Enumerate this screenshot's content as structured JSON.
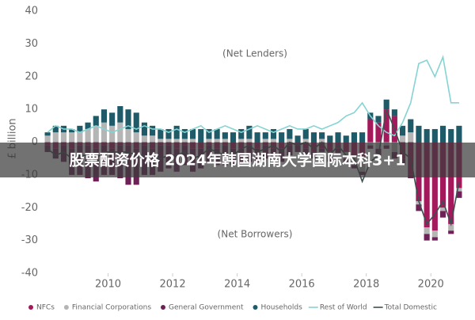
{
  "chart_data": {
    "type": "stacked_bar_line",
    "ylabel": "£ billion",
    "annotations": [
      "(Net Lenders)",
      "(Net Borrowers)"
    ],
    "overlay_text": "股票配资价格 2024年韩国湖南大学国际本科3+1",
    "x": [
      2008.125,
      2008.375,
      2008.625,
      2008.875,
      2009.125,
      2009.375,
      2009.625,
      2009.875,
      2010.125,
      2010.375,
      2010.625,
      2010.875,
      2011.125,
      2011.375,
      2011.625,
      2011.875,
      2012.125,
      2012.375,
      2012.625,
      2012.875,
      2013.125,
      2013.375,
      2013.625,
      2013.875,
      2014.125,
      2014.375,
      2014.625,
      2014.875,
      2015.125,
      2015.375,
      2015.625,
      2015.875,
      2016.125,
      2016.375,
      2016.625,
      2016.875,
      2017.125,
      2017.375,
      2017.625,
      2017.875,
      2018.125,
      2018.375,
      2018.625,
      2018.875,
      2019.125,
      2019.375,
      2019.625,
      2019.875,
      2020.125,
      2020.375,
      2020.625,
      2020.875
    ],
    "xlim": [
      2008,
      2021
    ],
    "xticks": [
      2010,
      2012,
      2014,
      2016,
      2018,
      2020
    ],
    "ylim": [
      -40,
      40
    ],
    "yticks": [
      -40,
      -30,
      -20,
      -10,
      0,
      10,
      20,
      30,
      40
    ],
    "series": [
      {
        "name": "NFCs",
        "kind": "bar",
        "color": "#a3195b",
        "values": [
          -1,
          -2,
          -1,
          -2,
          -1,
          -1,
          -2,
          -1,
          -2,
          -1,
          -1,
          -2,
          -1,
          -2,
          -1,
          -1,
          -2,
          -1,
          -2,
          -2,
          -1,
          -2,
          -1,
          -2,
          -2,
          -1,
          -2,
          -1,
          -2,
          -2,
          -1,
          -1,
          -2,
          -3,
          -2,
          -3,
          -2,
          -3,
          -4,
          -5,
          7,
          6,
          10,
          8,
          -5,
          -10,
          -18,
          -26,
          -27,
          -20,
          -25,
          -14
        ]
      },
      {
        "name": "Financial Corporations",
        "kind": "bar",
        "color": "#b5b5b5",
        "values": [
          2,
          3,
          3,
          3,
          3,
          4,
          5,
          6,
          5,
          6,
          4,
          3,
          2,
          2,
          1,
          1,
          1,
          1,
          1,
          0,
          1,
          1,
          1,
          0,
          1,
          1,
          0,
          1,
          1,
          0,
          1,
          0,
          1,
          0,
          1,
          -1,
          0,
          -2,
          -3,
          -4,
          -1,
          -2,
          -1,
          -3,
          2,
          3,
          -1,
          -2,
          -2,
          -1,
          -2,
          -1
        ]
      },
      {
        "name": "General Government",
        "kind": "bar",
        "color": "#6e2156",
        "values": [
          -2,
          -3,
          -5,
          -8,
          -9,
          -10,
          -10,
          -9,
          -8,
          -10,
          -12,
          -11,
          -9,
          -8,
          -8,
          -7,
          -7,
          -6,
          -7,
          -6,
          -5,
          -5,
          -6,
          -5,
          -4,
          -5,
          -4,
          -4,
          -3,
          -4,
          -3,
          -2,
          -2,
          -2,
          -1,
          -2,
          -2,
          -1,
          -1,
          -1,
          -1,
          -2,
          -1,
          -2,
          -2,
          -1,
          -2,
          -2,
          -1,
          -2,
          -1,
          -2
        ]
      },
      {
        "name": "Households",
        "kind": "bar",
        "color": "#1e5a68",
        "values": [
          1,
          2,
          2,
          1,
          2,
          2,
          3,
          4,
          4,
          5,
          6,
          6,
          4,
          3,
          3,
          3,
          4,
          3,
          3,
          4,
          3,
          3,
          2,
          3,
          3,
          4,
          3,
          2,
          3,
          3,
          3,
          2,
          3,
          3,
          2,
          2,
          3,
          2,
          3,
          3,
          2,
          2,
          3,
          2,
          3,
          4,
          5,
          4,
          4,
          5,
          4,
          5
        ]
      },
      {
        "name": "Rest of World",
        "kind": "line",
        "color": "#86d3d3",
        "values": [
          3,
          5,
          4,
          4,
          3,
          4,
          5,
          4,
          3,
          4,
          5,
          4,
          5,
          4,
          4,
          3,
          4,
          3,
          4,
          5,
          3,
          4,
          5,
          4,
          3,
          4,
          5,
          4,
          3,
          4,
          5,
          4,
          4,
          5,
          4,
          5,
          6,
          8,
          9,
          12,
          8,
          5,
          3,
          2,
          6,
          12,
          24,
          25,
          20,
          26,
          12,
          12
        ]
      },
      {
        "name": "Total Domestic",
        "kind": "line",
        "color": "#3d4f4f",
        "values": [
          -2,
          -4,
          -3,
          -5,
          -4,
          -4,
          -5,
          -3,
          -3,
          -3,
          -3,
          -4,
          -4,
          -5,
          -5,
          -4,
          -4,
          -3,
          -5,
          -4,
          -2,
          -3,
          -4,
          -4,
          -2,
          -1,
          -3,
          -2,
          -1,
          -3,
          0,
          -1,
          0,
          -2,
          0,
          -4,
          -1,
          -4,
          -5,
          -12,
          -6,
          -4,
          10,
          4,
          -3,
          -5,
          -18,
          -25,
          -22,
          -18,
          -25,
          -12
        ]
      }
    ]
  }
}
